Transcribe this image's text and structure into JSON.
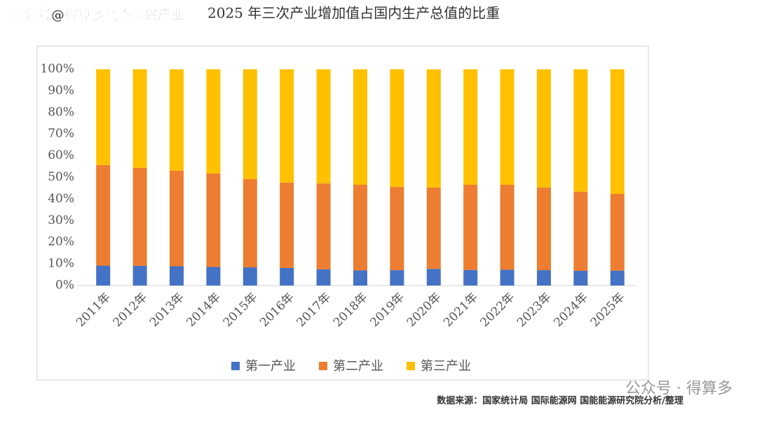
{
  "watermark": "搜狐号@得算多战略新兴产业",
  "source": "数据来源：国家统计局 国际能源网 国能能源研究院分析/整理",
  "brand": "公众号 · 得算多",
  "chart_data": {
    "type": "stacked_bar",
    "title": "2025 年三次产业增加值占国内生产总值的比重",
    "categories": [
      "2011年",
      "2012年",
      "2013年",
      "2014年",
      "2015年",
      "2016年",
      "2017年",
      "2018年",
      "2019年",
      "2020年",
      "2021年",
      "2022年",
      "2023年",
      "2024年",
      "2025年"
    ],
    "series": [
      {
        "name": "第一产业",
        "color": "#4472c4",
        "values": [
          9.2,
          9.1,
          8.9,
          8.6,
          8.4,
          8.1,
          7.5,
          7.0,
          7.1,
          7.7,
          7.2,
          7.3,
          7.1,
          6.8,
          6.9
        ]
      },
      {
        "name": "第二产业",
        "color": "#ed7d31",
        "values": [
          46.5,
          45.3,
          44.2,
          43.2,
          40.8,
          39.5,
          39.7,
          39.6,
          38.5,
          37.6,
          39.4,
          39.3,
          38.2,
          36.6,
          35.5
        ]
      },
      {
        "name": "第三产业",
        "color": "#ffc000",
        "values": [
          44.3,
          45.6,
          46.9,
          48.2,
          50.8,
          52.4,
          52.8,
          53.4,
          54.4,
          54.7,
          53.4,
          53.4,
          54.7,
          56.6,
          57.6
        ]
      }
    ],
    "ylim": [
      0,
      100
    ],
    "yticks": [
      {
        "value": 0,
        "label": "0%"
      },
      {
        "value": 10,
        "label": "10%"
      },
      {
        "value": 20,
        "label": "20%"
      },
      {
        "value": 30,
        "label": "30%"
      },
      {
        "value": 40,
        "label": "40%"
      },
      {
        "value": 50,
        "label": "50%"
      },
      {
        "value": 60,
        "label": "60%"
      },
      {
        "value": 70,
        "label": "70%"
      },
      {
        "value": 80,
        "label": "80%"
      },
      {
        "value": 90,
        "label": "90%"
      },
      {
        "value": 100,
        "label": "100%"
      }
    ],
    "legend": "bottom"
  }
}
